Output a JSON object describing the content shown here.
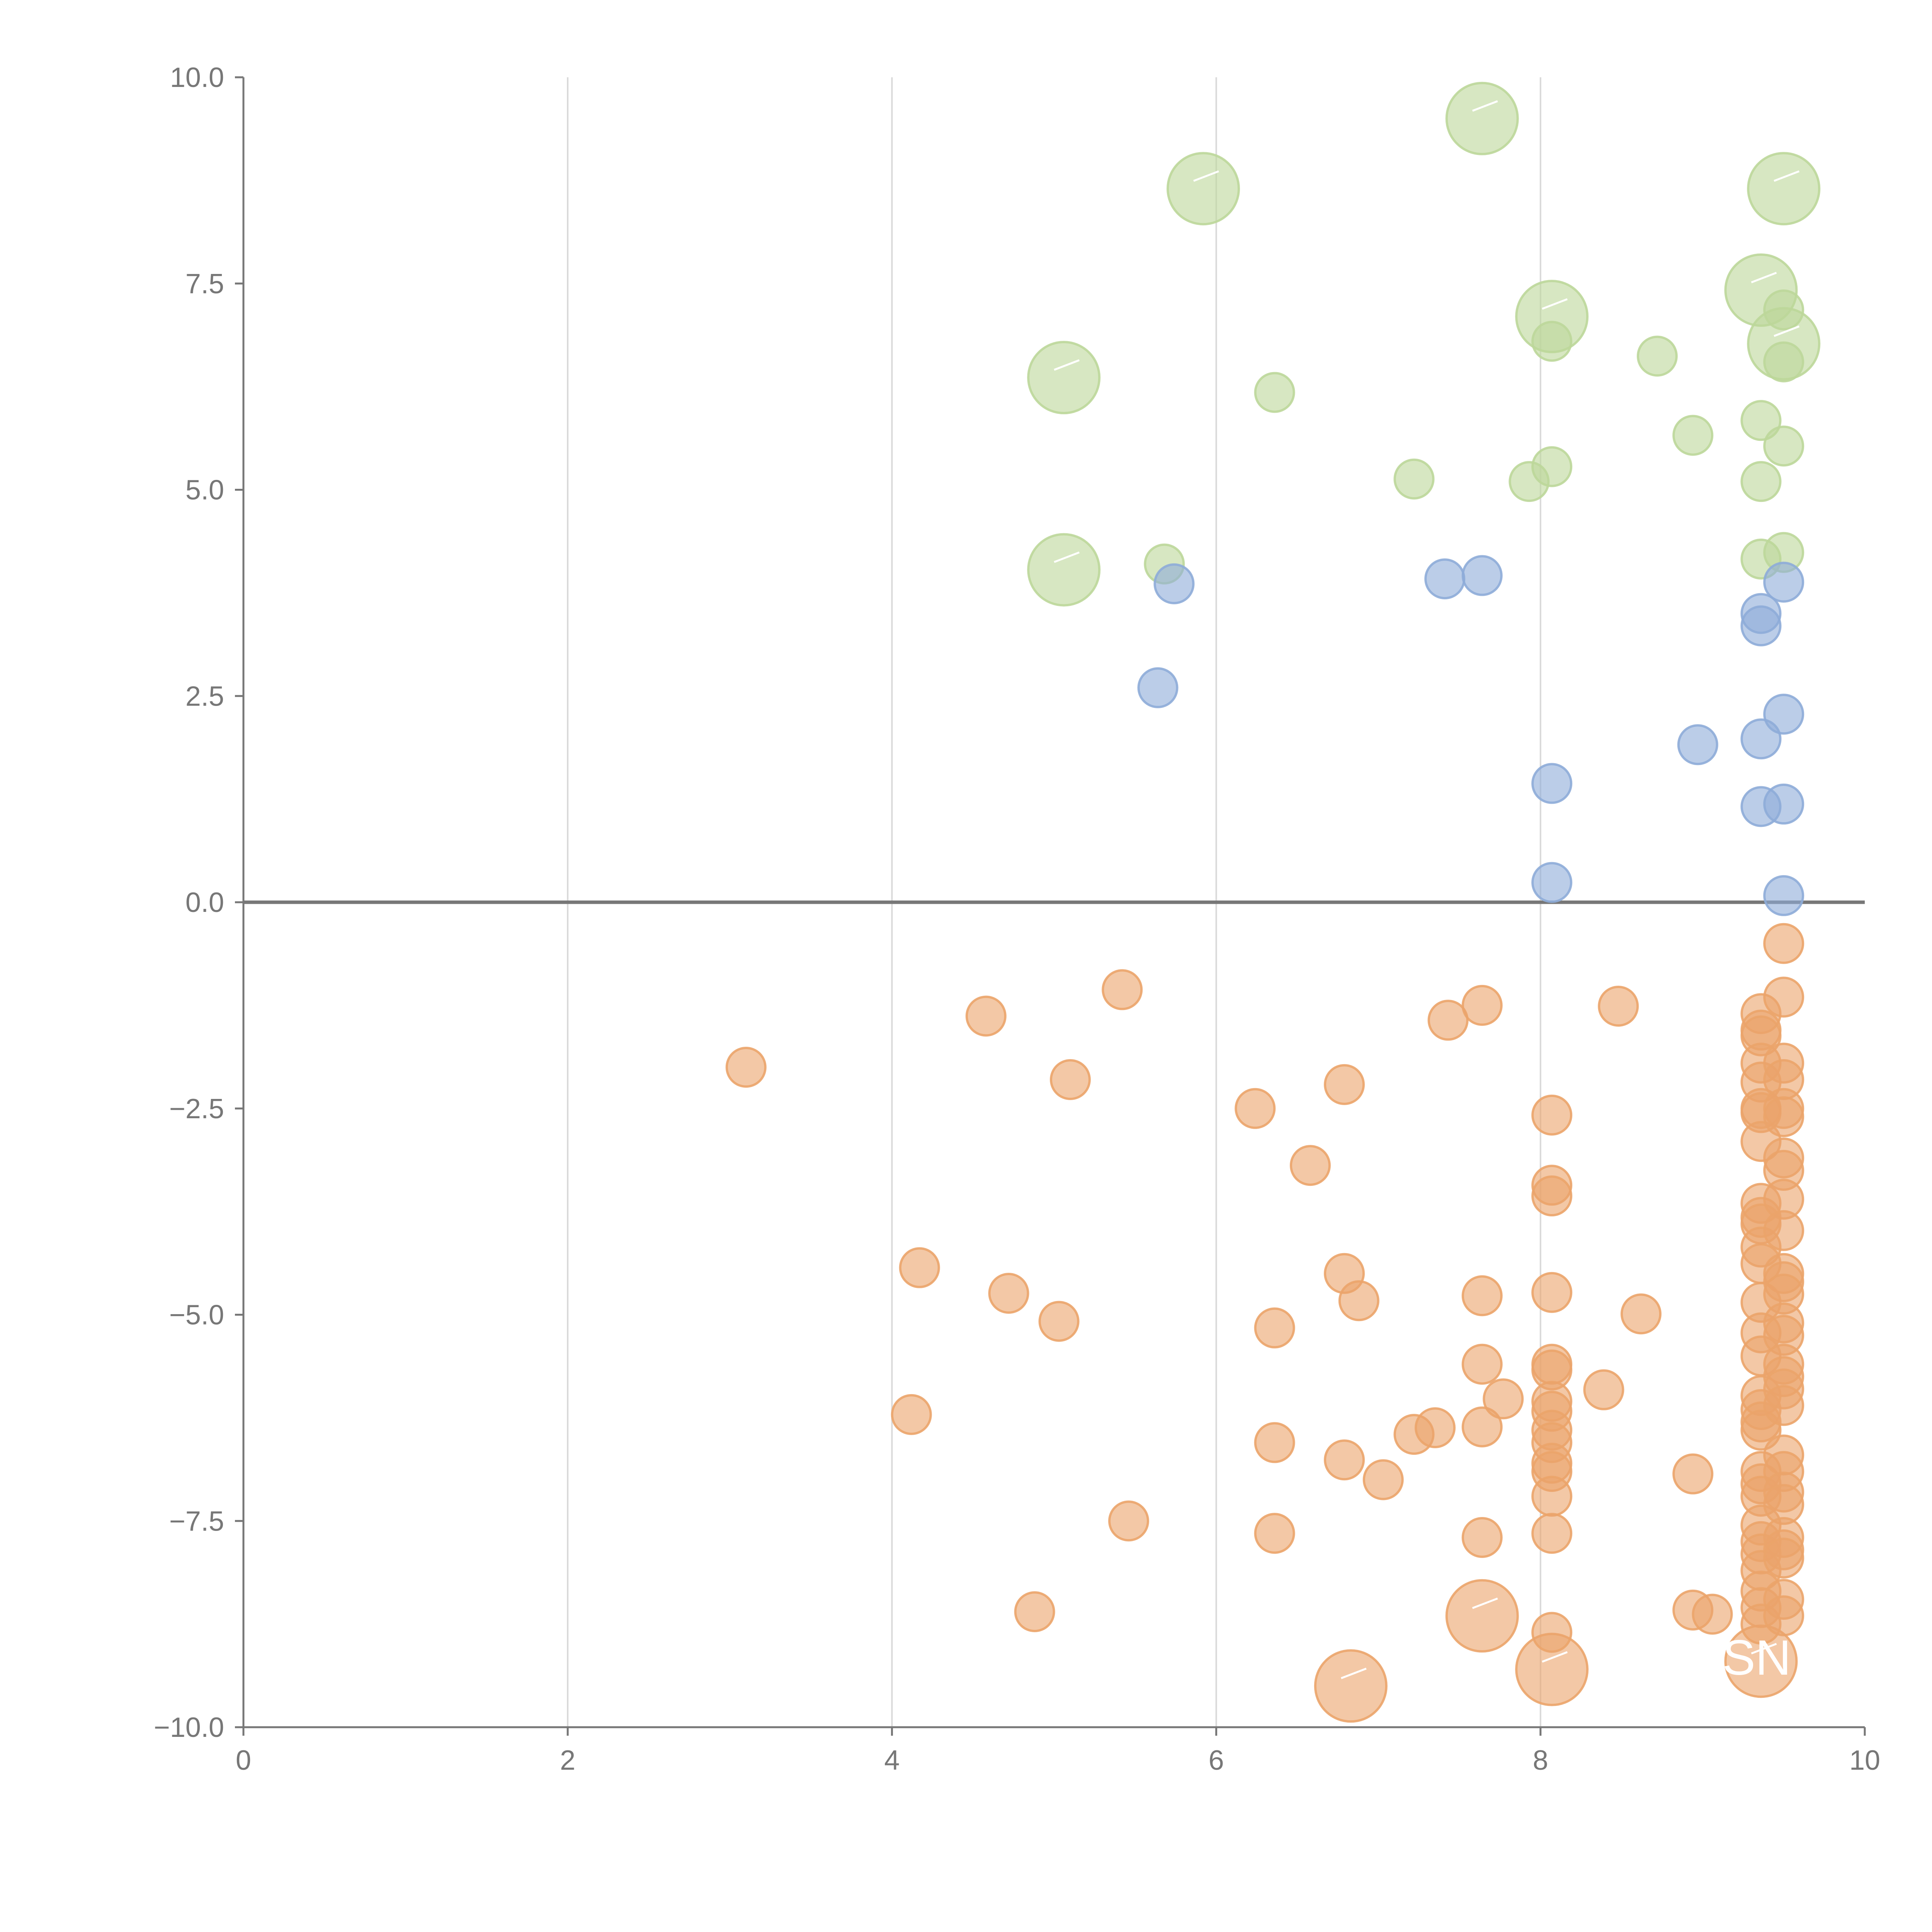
{
  "chart_data": {
    "type": "scatter",
    "title": "",
    "xlabel": "",
    "ylabel": "",
    "xlim": [
      0,
      10
    ],
    "ylim": [
      -10,
      10
    ],
    "grid": "vertical",
    "x_ticks": [
      "0",
      "2",
      "4",
      "6",
      "8",
      "10"
    ],
    "y_ticks": [
      "−10.0",
      "−7.5",
      "−5.0",
      "−2.5",
      "0.0",
      "2.5",
      "5.0",
      "7.5",
      "10.0"
    ],
    "colors": {
      "green": "#bcd79a",
      "blue": "#8eacd8",
      "orange": "#eba46a"
    },
    "series": [
      {
        "name": "green",
        "color": "#bcd79a",
        "points": [
          [
            7.64,
            9.5,
            "L"
          ],
          [
            5.92,
            8.65,
            "L"
          ],
          [
            9.5,
            8.65,
            "L"
          ],
          [
            9.36,
            7.42,
            "L"
          ],
          [
            8.07,
            7.1,
            "L"
          ],
          [
            9.5,
            6.77,
            "L"
          ],
          [
            5.06,
            6.36,
            "L"
          ],
          [
            5.06,
            4.03,
            "L"
          ],
          [
            9.5,
            7.18,
            "S"
          ],
          [
            8.07,
            6.8,
            "S"
          ],
          [
            8.72,
            6.62,
            "S"
          ],
          [
            9.5,
            6.55,
            "S"
          ],
          [
            6.36,
            6.18,
            "S"
          ],
          [
            8.94,
            5.66,
            "S"
          ],
          [
            9.36,
            5.84,
            "S"
          ],
          [
            9.5,
            5.53,
            "S"
          ],
          [
            8.07,
            5.28,
            "S"
          ],
          [
            7.22,
            5.13,
            "S"
          ],
          [
            7.93,
            5.1,
            "S"
          ],
          [
            9.36,
            5.1,
            "S"
          ],
          [
            9.36,
            4.16,
            "S"
          ],
          [
            9.5,
            4.24,
            "S"
          ],
          [
            5.68,
            4.1,
            "S"
          ]
        ]
      },
      {
        "name": "blue",
        "color": "#8eacd8",
        "points": [
          [
            5.74,
            3.86,
            "S"
          ],
          [
            7.41,
            3.92,
            "S"
          ],
          [
            7.64,
            3.96,
            "S"
          ],
          [
            9.5,
            3.88,
            "S"
          ],
          [
            9.36,
            3.5,
            "S"
          ],
          [
            9.36,
            3.35,
            "S"
          ],
          [
            5.64,
            2.6,
            "S"
          ],
          [
            9.5,
            2.28,
            "S"
          ],
          [
            8.97,
            1.91,
            "S"
          ],
          [
            9.36,
            1.98,
            "S"
          ],
          [
            8.07,
            1.44,
            "S"
          ],
          [
            9.36,
            1.16,
            "S"
          ],
          [
            9.5,
            1.19,
            "S"
          ],
          [
            8.07,
            0.24,
            "S"
          ],
          [
            9.5,
            0.08,
            "S"
          ]
        ]
      },
      {
        "name": "orange",
        "color": "#eba46a",
        "points": [
          [
            6.83,
            -9.5,
            "L"
          ],
          [
            7.64,
            -8.65,
            "L"
          ],
          [
            8.07,
            -9.3,
            "L"
          ],
          [
            9.36,
            -9.2,
            "L"
          ],
          [
            3.1,
            -2.0,
            "S"
          ],
          [
            4.58,
            -1.38,
            "S"
          ],
          [
            5.42,
            -1.06,
            "S"
          ],
          [
            5.1,
            -2.15,
            "S"
          ],
          [
            4.17,
            -4.43,
            "S"
          ],
          [
            4.72,
            -4.74,
            "S"
          ],
          [
            5.03,
            -5.08,
            "S"
          ],
          [
            4.12,
            -6.21,
            "S"
          ],
          [
            5.46,
            -7.5,
            "S"
          ],
          [
            4.88,
            -8.6,
            "S"
          ],
          [
            6.24,
            -2.5,
            "S"
          ],
          [
            6.58,
            -3.19,
            "S"
          ],
          [
            6.79,
            -2.21,
            "S"
          ],
          [
            6.79,
            -4.5,
            "S"
          ],
          [
            6.88,
            -4.83,
            "S"
          ],
          [
            6.36,
            -5.16,
            "S"
          ],
          [
            6.36,
            -6.55,
            "S"
          ],
          [
            6.79,
            -6.76,
            "S"
          ],
          [
            7.03,
            -7.0,
            "S"
          ],
          [
            6.36,
            -7.65,
            "S"
          ],
          [
            7.22,
            -6.45,
            "S"
          ],
          [
            7.35,
            -6.37,
            "S"
          ],
          [
            7.64,
            -6.36,
            "S"
          ],
          [
            7.77,
            -6.02,
            "S"
          ],
          [
            7.64,
            -5.6,
            "S"
          ],
          [
            7.64,
            -4.77,
            "S"
          ],
          [
            7.64,
            -7.7,
            "S"
          ],
          [
            7.43,
            -1.43,
            "S"
          ],
          [
            7.64,
            -1.25,
            "S"
          ],
          [
            8.07,
            -2.58,
            "S"
          ],
          [
            8.07,
            -3.43,
            "S"
          ],
          [
            8.07,
            -3.56,
            "S"
          ],
          [
            8.07,
            -4.73,
            "S"
          ],
          [
            8.07,
            -5.6,
            "S"
          ],
          [
            8.07,
            -5.67,
            "S"
          ],
          [
            8.07,
            -6.05,
            "S"
          ],
          [
            8.07,
            -6.17,
            "S"
          ],
          [
            8.07,
            -6.4,
            "S"
          ],
          [
            8.07,
            -6.55,
            "S"
          ],
          [
            8.07,
            -6.8,
            "S"
          ],
          [
            8.07,
            -6.9,
            "S"
          ],
          [
            8.07,
            -7.2,
            "S"
          ],
          [
            8.07,
            -7.65,
            "S"
          ],
          [
            8.07,
            -8.85,
            "S"
          ],
          [
            8.48,
            -1.26,
            "S"
          ],
          [
            8.39,
            -5.91,
            "S"
          ],
          [
            8.62,
            -4.99,
            "S"
          ],
          [
            8.94,
            -6.93,
            "S"
          ],
          [
            8.94,
            -8.58,
            "S"
          ],
          [
            9.06,
            -8.63,
            "S"
          ],
          [
            9.36,
            -1.35,
            "S"
          ],
          [
            9.36,
            -1.55,
            "S"
          ],
          [
            9.36,
            -1.62,
            "S"
          ],
          [
            9.36,
            -1.95,
            "S"
          ],
          [
            9.36,
            -2.18,
            "S"
          ],
          [
            9.36,
            -2.5,
            "S"
          ],
          [
            9.36,
            -2.55,
            "S"
          ],
          [
            9.36,
            -2.9,
            "S"
          ],
          [
            9.36,
            -3.65,
            "S"
          ],
          [
            9.36,
            -3.82,
            "S"
          ],
          [
            9.36,
            -3.9,
            "S"
          ],
          [
            9.36,
            -4.18,
            "S"
          ],
          [
            9.36,
            -4.38,
            "S"
          ],
          [
            9.36,
            -4.85,
            "S"
          ],
          [
            9.36,
            -5.22,
            "S"
          ],
          [
            9.36,
            -5.5,
            "S"
          ],
          [
            9.36,
            -5.98,
            "S"
          ],
          [
            9.36,
            -6.15,
            "S"
          ],
          [
            9.36,
            -6.3,
            "S"
          ],
          [
            9.36,
            -6.4,
            "S"
          ],
          [
            9.36,
            -6.9,
            "S"
          ],
          [
            9.36,
            -7.05,
            "S"
          ],
          [
            9.36,
            -7.2,
            "S"
          ],
          [
            9.36,
            -7.55,
            "S"
          ],
          [
            9.36,
            -7.75,
            "S"
          ],
          [
            9.36,
            -7.9,
            "S"
          ],
          [
            9.36,
            -8.1,
            "S"
          ],
          [
            9.36,
            -8.35,
            "S"
          ],
          [
            9.36,
            -8.55,
            "S"
          ],
          [
            9.36,
            -8.75,
            "S"
          ],
          [
            9.5,
            -0.5,
            "S"
          ],
          [
            9.5,
            -1.15,
            "S"
          ],
          [
            9.5,
            -1.95,
            "S"
          ],
          [
            9.5,
            -2.15,
            "S"
          ],
          [
            9.5,
            -2.5,
            "S"
          ],
          [
            9.5,
            -2.6,
            "S"
          ],
          [
            9.5,
            -3.1,
            "S"
          ],
          [
            9.5,
            -3.25,
            "S"
          ],
          [
            9.5,
            -3.6,
            "S"
          ],
          [
            9.5,
            -3.98,
            "S"
          ],
          [
            9.5,
            -4.5,
            "S"
          ],
          [
            9.5,
            -4.6,
            "S"
          ],
          [
            9.5,
            -4.75,
            "S"
          ],
          [
            9.5,
            -5.1,
            "S"
          ],
          [
            9.5,
            -5.25,
            "S"
          ],
          [
            9.5,
            -5.6,
            "S"
          ],
          [
            9.5,
            -5.75,
            "S"
          ],
          [
            9.5,
            -5.9,
            "S"
          ],
          [
            9.5,
            -6.1,
            "S"
          ],
          [
            9.5,
            -6.7,
            "S"
          ],
          [
            9.5,
            -6.9,
            "S"
          ],
          [
            9.5,
            -7.15,
            "S"
          ],
          [
            9.5,
            -7.3,
            "S"
          ],
          [
            9.5,
            -7.7,
            "S"
          ],
          [
            9.5,
            -7.85,
            "S"
          ],
          [
            9.5,
            -7.95,
            "S"
          ],
          [
            9.5,
            -8.45,
            "S"
          ],
          [
            9.5,
            -8.65,
            "S"
          ]
        ]
      }
    ],
    "annotations": [
      "SN"
    ]
  }
}
